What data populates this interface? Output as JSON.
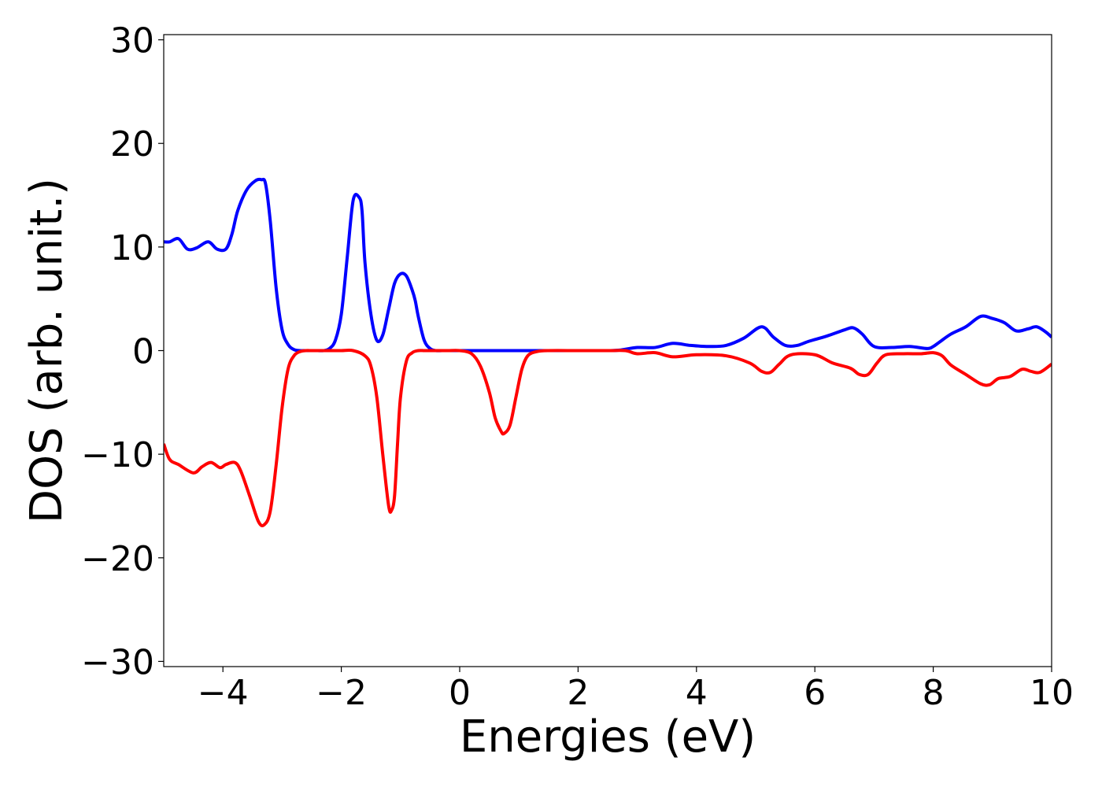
{
  "chart_data": {
    "type": "line",
    "title": "",
    "xlabel": "Energies (eV)",
    "ylabel": "DOS (arb. unit.)",
    "xlim": [
      -5,
      10
    ],
    "ylim": [
      -30.5,
      30.5
    ],
    "xticks": [
      -4,
      -2,
      0,
      2,
      4,
      6,
      8,
      10
    ],
    "xtick_labels": [
      "−4",
      "−2",
      "0",
      "2",
      "4",
      "6",
      "8",
      "10"
    ],
    "yticks": [
      30,
      20,
      10,
      0,
      -10,
      -20,
      -30
    ],
    "ytick_labels": [
      "30",
      "20",
      "10",
      "0",
      "−10",
      "−20",
      "−30"
    ],
    "grid": false,
    "legend": "none",
    "series": [
      {
        "color": "#0000ff",
        "x": [
          -5.0,
          -4.9,
          -4.75,
          -4.6,
          -4.45,
          -4.25,
          -4.1,
          -3.95,
          -3.85,
          -3.75,
          -3.6,
          -3.45,
          -3.35,
          -3.28,
          -3.2,
          -3.1,
          -3.0,
          -2.9,
          -2.8,
          -2.7,
          -2.6,
          -2.5,
          -2.4,
          -2.3,
          -2.2,
          -2.1,
          -2.0,
          -1.9,
          -1.8,
          -1.7,
          -1.65,
          -1.6,
          -1.5,
          -1.4,
          -1.3,
          -1.2,
          -1.1,
          -1.0,
          -0.9,
          -0.8,
          -0.75,
          -0.7,
          -0.6,
          -0.5,
          -0.4,
          -0.3,
          -0.2,
          -0.1,
          0.0,
          0.5,
          1.0,
          1.5,
          2.0,
          2.5,
          2.7,
          3.0,
          3.3,
          3.6,
          3.9,
          4.2,
          4.5,
          4.8,
          5.1,
          5.3,
          5.5,
          5.7,
          5.9,
          6.2,
          6.5,
          6.65,
          6.8,
          7.0,
          7.3,
          7.6,
          7.9,
          8.0,
          8.1,
          8.3,
          8.55,
          8.8,
          9.0,
          9.2,
          9.4,
          9.6,
          9.75,
          9.9,
          10.0
        ],
        "y": [
          10.5,
          10.5,
          10.8,
          9.8,
          9.9,
          10.5,
          9.8,
          9.8,
          11.2,
          13.5,
          15.5,
          16.4,
          16.5,
          16.1,
          12.5,
          6.0,
          2.0,
          0.6,
          0.1,
          0.0,
          0.0,
          0.0,
          0.0,
          0.0,
          0.2,
          1.0,
          3.5,
          9.0,
          14.5,
          14.8,
          13.5,
          8.5,
          3.5,
          1.0,
          1.5,
          4.0,
          6.5,
          7.4,
          7.2,
          5.8,
          4.8,
          3.3,
          1.0,
          0.2,
          0.0,
          0.0,
          0.0,
          0.0,
          0.0,
          0.0,
          0.0,
          0.0,
          0.0,
          0.0,
          0.05,
          0.3,
          0.3,
          0.7,
          0.5,
          0.4,
          0.5,
          1.2,
          2.3,
          1.3,
          0.5,
          0.5,
          0.9,
          1.4,
          2.0,
          2.2,
          1.6,
          0.4,
          0.3,
          0.4,
          0.2,
          0.4,
          0.8,
          1.6,
          2.3,
          3.3,
          3.1,
          2.7,
          1.9,
          2.1,
          2.3,
          1.8,
          1.3
        ]
      },
      {
        "color": "#ff0000",
        "x": [
          -5.0,
          -4.9,
          -4.75,
          -4.5,
          -4.35,
          -4.2,
          -4.05,
          -3.95,
          -3.8,
          -3.7,
          -3.55,
          -3.4,
          -3.3,
          -3.2,
          -3.1,
          -3.0,
          -2.9,
          -2.8,
          -2.7,
          -2.6,
          -2.5,
          -2.4,
          -2.2,
          -2.0,
          -1.8,
          -1.6,
          -1.5,
          -1.4,
          -1.3,
          -1.2,
          -1.15,
          -1.1,
          -1.05,
          -1.0,
          -0.9,
          -0.8,
          -0.7,
          -0.6,
          -0.5,
          -0.4,
          -0.2,
          0.0,
          0.2,
          0.35,
          0.5,
          0.6,
          0.7,
          0.75,
          0.85,
          0.95,
          1.05,
          1.15,
          1.3,
          1.5,
          2.0,
          2.5,
          2.8,
          3.0,
          3.3,
          3.6,
          4.0,
          4.5,
          4.9,
          5.1,
          5.25,
          5.4,
          5.6,
          6.0,
          6.3,
          6.6,
          6.75,
          6.9,
          7.05,
          7.2,
          7.5,
          7.8,
          8.0,
          8.15,
          8.3,
          8.55,
          8.8,
          8.95,
          9.1,
          9.3,
          9.5,
          9.65,
          9.8,
          10.0
        ],
        "y": [
          -9.0,
          -10.5,
          -11.0,
          -11.8,
          -11.2,
          -10.8,
          -11.3,
          -11.0,
          -10.8,
          -11.6,
          -14.0,
          -16.5,
          -16.8,
          -15.5,
          -11.0,
          -5.5,
          -1.8,
          -0.5,
          -0.1,
          0.0,
          0.0,
          0.0,
          0.0,
          0.0,
          0.0,
          -0.5,
          -1.5,
          -4.5,
          -10.0,
          -15.0,
          -15.4,
          -14.0,
          -9.0,
          -4.5,
          -1.0,
          -0.2,
          0.0,
          0.0,
          0.0,
          0.0,
          0.0,
          0.0,
          -0.3,
          -1.5,
          -4.0,
          -6.5,
          -7.8,
          -8.0,
          -7.2,
          -4.5,
          -1.8,
          -0.5,
          -0.1,
          0.0,
          0.0,
          0.0,
          0.0,
          -0.3,
          -0.2,
          -0.6,
          -0.4,
          -0.5,
          -1.2,
          -2.0,
          -2.1,
          -1.3,
          -0.4,
          -0.4,
          -1.2,
          -1.7,
          -2.3,
          -2.3,
          -1.2,
          -0.4,
          -0.3,
          -0.3,
          -0.2,
          -0.5,
          -1.4,
          -2.3,
          -3.2,
          -3.3,
          -2.7,
          -2.5,
          -1.8,
          -2.0,
          -2.1,
          -1.3
        ]
      }
    ]
  }
}
